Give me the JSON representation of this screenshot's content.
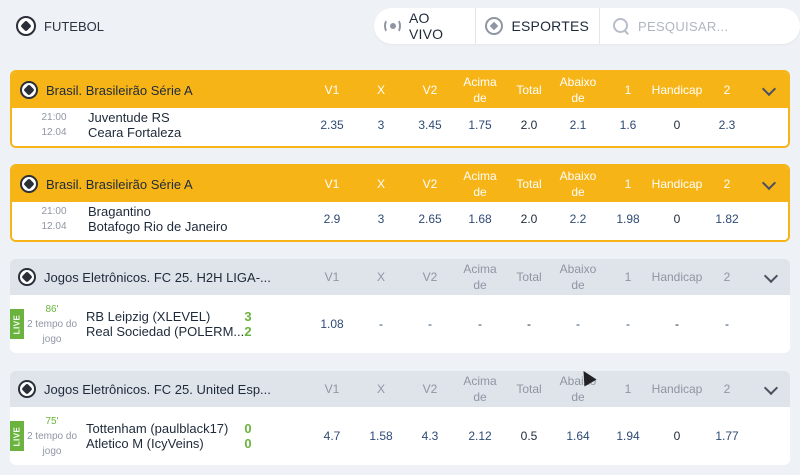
{
  "header": {
    "sport_title": "FUTEBOL",
    "nav": {
      "live_label": "AO VIVO",
      "sports_label": "ESPORTES"
    },
    "search": {
      "placeholder": "PESQUISAR..."
    }
  },
  "columns": {
    "v1": "V1",
    "x": "X",
    "v2": "V2",
    "acima": [
      "Acima",
      "de"
    ],
    "total": "Total",
    "abaixo": [
      "Abaixo",
      "de"
    ],
    "one": "1",
    "handicap": "Handicap",
    "two": "2"
  },
  "cards": [
    {
      "league": "Brasil. Brasileirão Série A",
      "time": "21:00",
      "date": "12.04",
      "home": "Juventude RS",
      "away": "Ceara Fortaleza",
      "odds": [
        "2.35",
        "3",
        "3.45",
        "1.75",
        "2.0",
        "2.1",
        "1.6",
        "0",
        "2.3"
      ]
    },
    {
      "league": "Brasil. Brasileirão Série A",
      "time": "21:00",
      "date": "12.04",
      "home": "Bragantino",
      "away": "Botafogo Rio de Janeiro",
      "odds": [
        "2.9",
        "3",
        "2.65",
        "1.68",
        "2.0",
        "2.2",
        "1.98",
        "0",
        "1.82"
      ]
    },
    {
      "league": "Jogos Eletrônicos. FC 25. H2H LIGA-...",
      "live_badge": "LIVE",
      "minute": "86'",
      "period": [
        "2 tempo do",
        "jogo"
      ],
      "home": "RB Leipzig (XLEVEL)",
      "away": "Real Sociedad (POLERM...",
      "home_score": "3",
      "away_score": "2",
      "odds": [
        "1.08",
        "-",
        "-",
        "-",
        "-",
        "-",
        "-",
        "-",
        "-"
      ]
    },
    {
      "league": "Jogos Eletrônicos. FC 25. United Esp...",
      "live_badge": "LIVE",
      "minute": "75'",
      "period": [
        "2 tempo do",
        "jogo"
      ],
      "home": "Tottenham (paulblack17)",
      "away": "Atletico M (IcyVeins)",
      "home_score": "0",
      "away_score": "0",
      "odds": [
        "4.7",
        "1.58",
        "4.3",
        "2.12",
        "0.5",
        "1.64",
        "1.94",
        "0",
        "1.77"
      ]
    }
  ],
  "colors": {
    "featured": "#f6b417",
    "live": "#6ab33e",
    "odds": "#2e4a75"
  }
}
